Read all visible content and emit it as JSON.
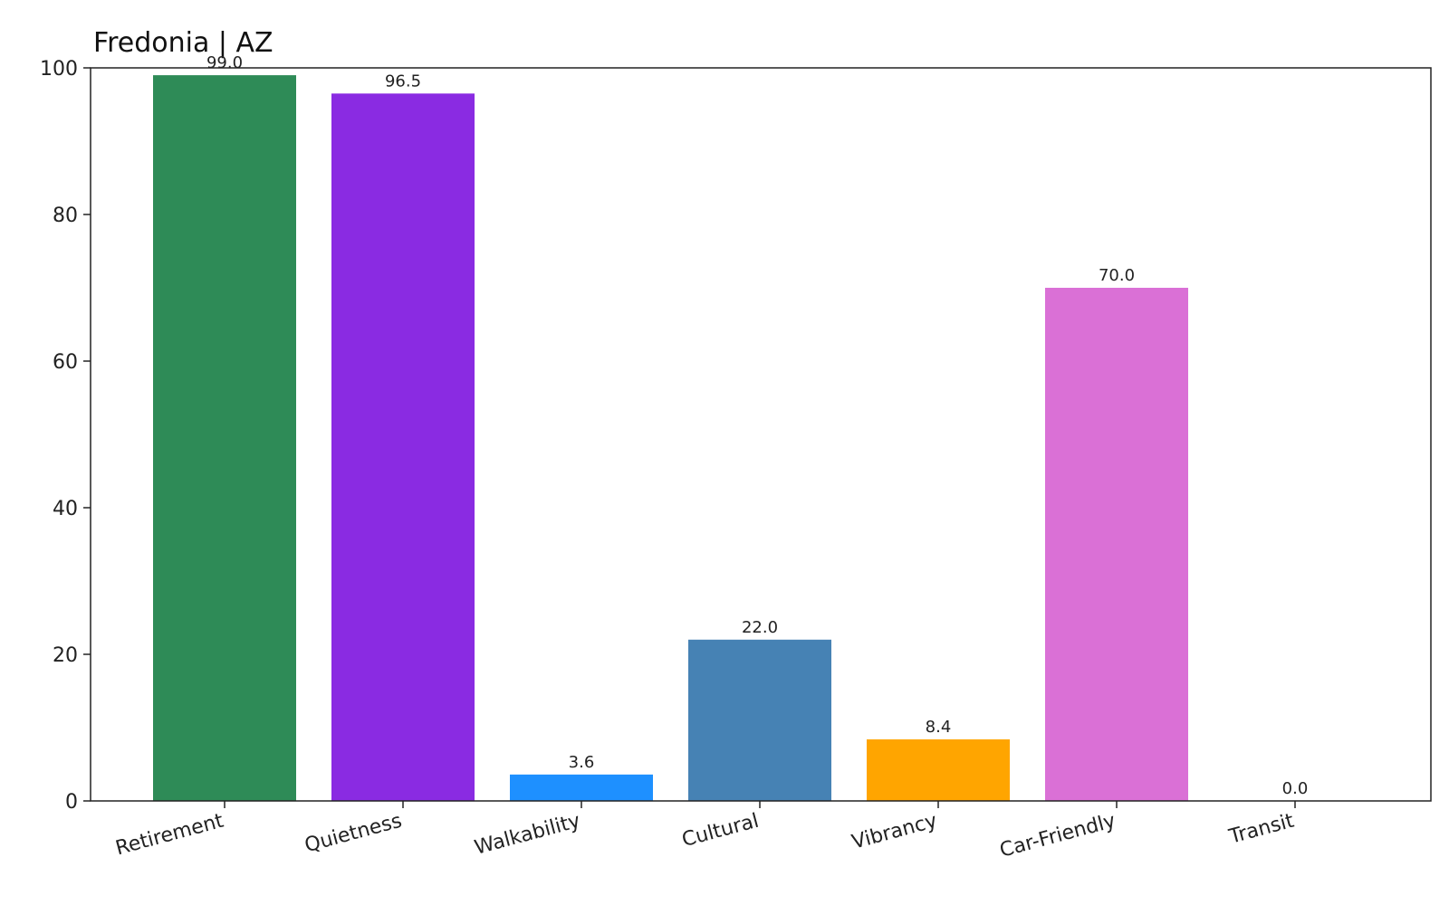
{
  "chart_data": {
    "type": "bar",
    "title": "Fredonia | AZ",
    "xlabel": "",
    "ylabel": "",
    "categories": [
      "Retirement",
      "Quietness",
      "Walkability",
      "Cultural",
      "Vibrancy",
      "Car-Friendly",
      "Transit"
    ],
    "values": [
      99.0,
      96.5,
      3.6,
      22.0,
      8.4,
      70.0,
      0.0
    ],
    "value_labels": [
      "99.0",
      "96.5",
      "3.6",
      "22.0",
      "8.4",
      "70.0",
      "0.0"
    ],
    "colors": [
      "#2e8b57",
      "#8a2be2",
      "#1e90ff",
      "#4682b4",
      "#ffa500",
      "#da70d6",
      "#999999"
    ],
    "ylim": [
      0,
      100
    ],
    "yticks": [
      0,
      20,
      40,
      60,
      80,
      100
    ],
    "ytick_labels": [
      "0",
      "20",
      "40",
      "60",
      "80",
      "100"
    ],
    "grid": false,
    "legend": "none"
  }
}
